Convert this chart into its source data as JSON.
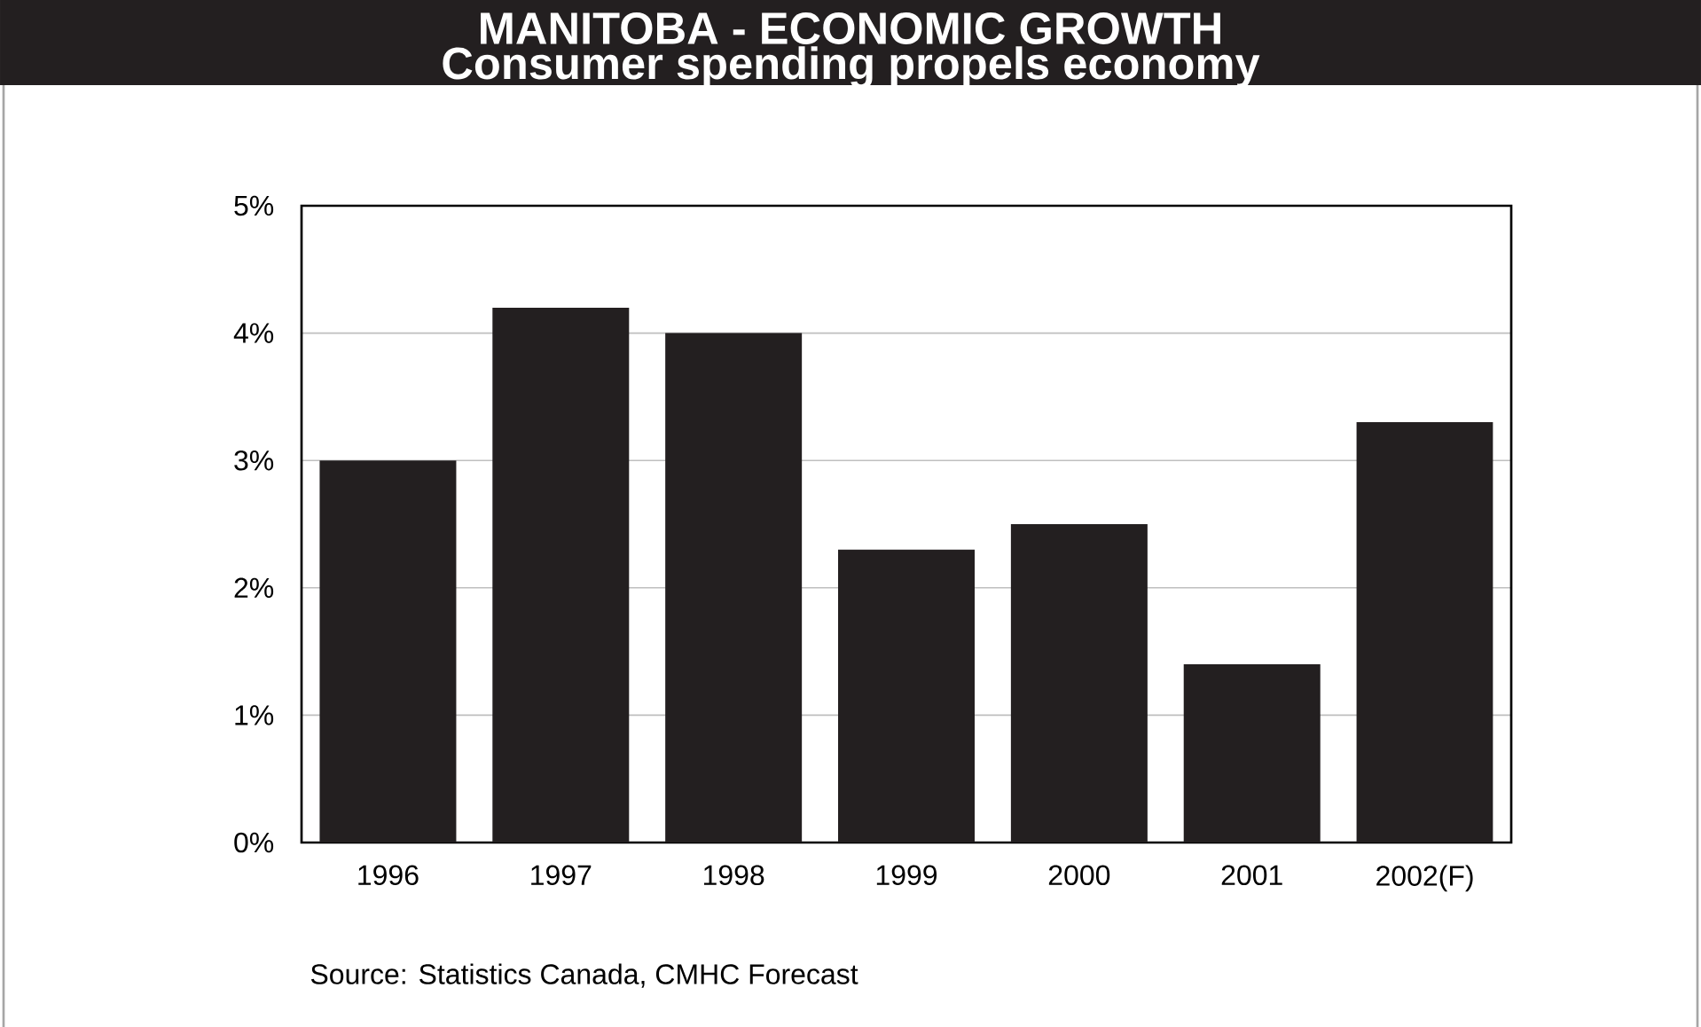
{
  "chart_data": {
    "type": "bar",
    "title": "MANITOBA - ECONOMIC GROWTH",
    "subtitle": "Consumer spending propels economy",
    "categories": [
      "1996",
      "1997",
      "1998",
      "1999",
      "2000",
      "2001",
      "2002(F)"
    ],
    "values": [
      3.0,
      4.2,
      4.0,
      2.3,
      2.5,
      1.4,
      3.3
    ],
    "color": "#231f20",
    "ylim": [
      0,
      5
    ],
    "yticks": [
      {
        "value": 0,
        "label": "0%"
      },
      {
        "value": 1,
        "label": "1%"
      },
      {
        "value": 2,
        "label": "2%"
      },
      {
        "value": 3,
        "label": "3%"
      },
      {
        "value": 4,
        "label": "4%"
      },
      {
        "value": 5,
        "label": "5%"
      }
    ],
    "grid": "y",
    "annotations": [
      "Source: Statistics Canada, CMHC Forecast"
    ]
  }
}
